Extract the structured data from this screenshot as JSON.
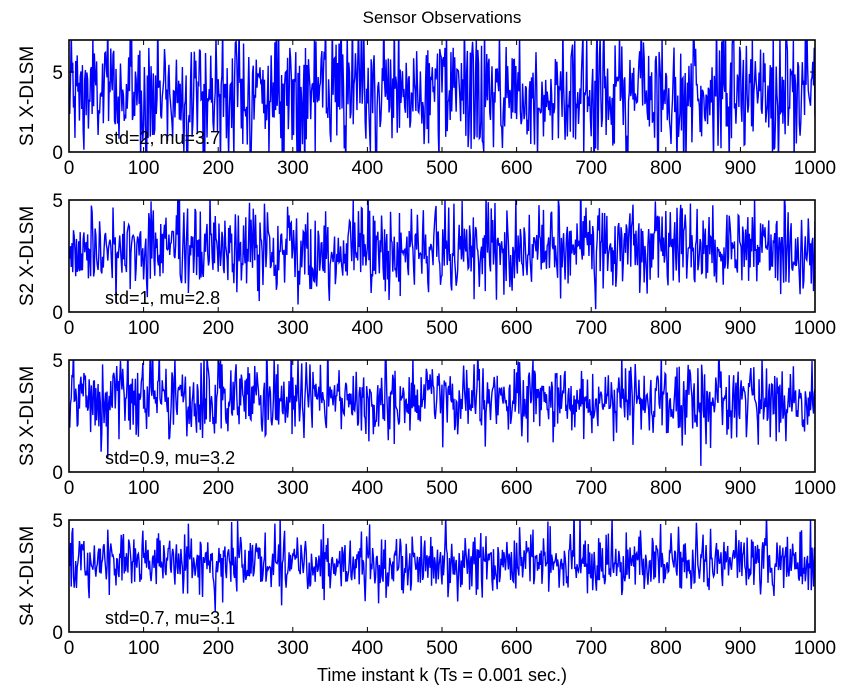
{
  "chart_data": [
    {
      "type": "line",
      "title": "Sensor Observations",
      "ylabel": "S1 X-DLSM",
      "xlabel": "",
      "xlim": [
        0,
        1000
      ],
      "ylim": [
        0,
        7
      ],
      "xticks": [
        0,
        100,
        200,
        300,
        400,
        500,
        600,
        700,
        800,
        900,
        1000
      ],
      "yticks": [
        0,
        5
      ],
      "annotation": "std=2, mu=3.7",
      "series": [
        {
          "std": 2,
          "mu": 3.7,
          "n": 1000,
          "color": "#0000ff"
        }
      ]
    },
    {
      "type": "line",
      "title": "",
      "ylabel": "S2 X-DLSM",
      "xlabel": "",
      "xlim": [
        0,
        1000
      ],
      "ylim": [
        0,
        5
      ],
      "xticks": [
        0,
        100,
        200,
        300,
        400,
        500,
        600,
        700,
        800,
        900,
        1000
      ],
      "yticks": [
        0,
        5
      ],
      "annotation": "std=1, mu=2.8",
      "series": [
        {
          "std": 1,
          "mu": 2.8,
          "n": 1000,
          "color": "#0000ff"
        }
      ]
    },
    {
      "type": "line",
      "title": "",
      "ylabel": "S3 X-DLSM",
      "xlabel": "",
      "xlim": [
        0,
        1000
      ],
      "ylim": [
        0,
        5
      ],
      "xticks": [
        0,
        100,
        200,
        300,
        400,
        500,
        600,
        700,
        800,
        900,
        1000
      ],
      "yticks": [
        0,
        5
      ],
      "annotation": "std=0.9, mu=3.2",
      "series": [
        {
          "std": 0.9,
          "mu": 3.2,
          "n": 1000,
          "color": "#0000ff"
        }
      ]
    },
    {
      "type": "line",
      "title": "",
      "ylabel": "S4 X-DLSM",
      "xlabel": "Time instant k (Ts = 0.001 sec.)",
      "xlim": [
        0,
        1000
      ],
      "ylim": [
        0,
        5
      ],
      "xticks": [
        0,
        100,
        200,
        300,
        400,
        500,
        600,
        700,
        800,
        900,
        1000
      ],
      "yticks": [
        0,
        5
      ],
      "annotation": "std=0.7, mu=3.1",
      "series": [
        {
          "std": 0.7,
          "mu": 3.1,
          "n": 1000,
          "color": "#0000ff"
        }
      ]
    }
  ]
}
